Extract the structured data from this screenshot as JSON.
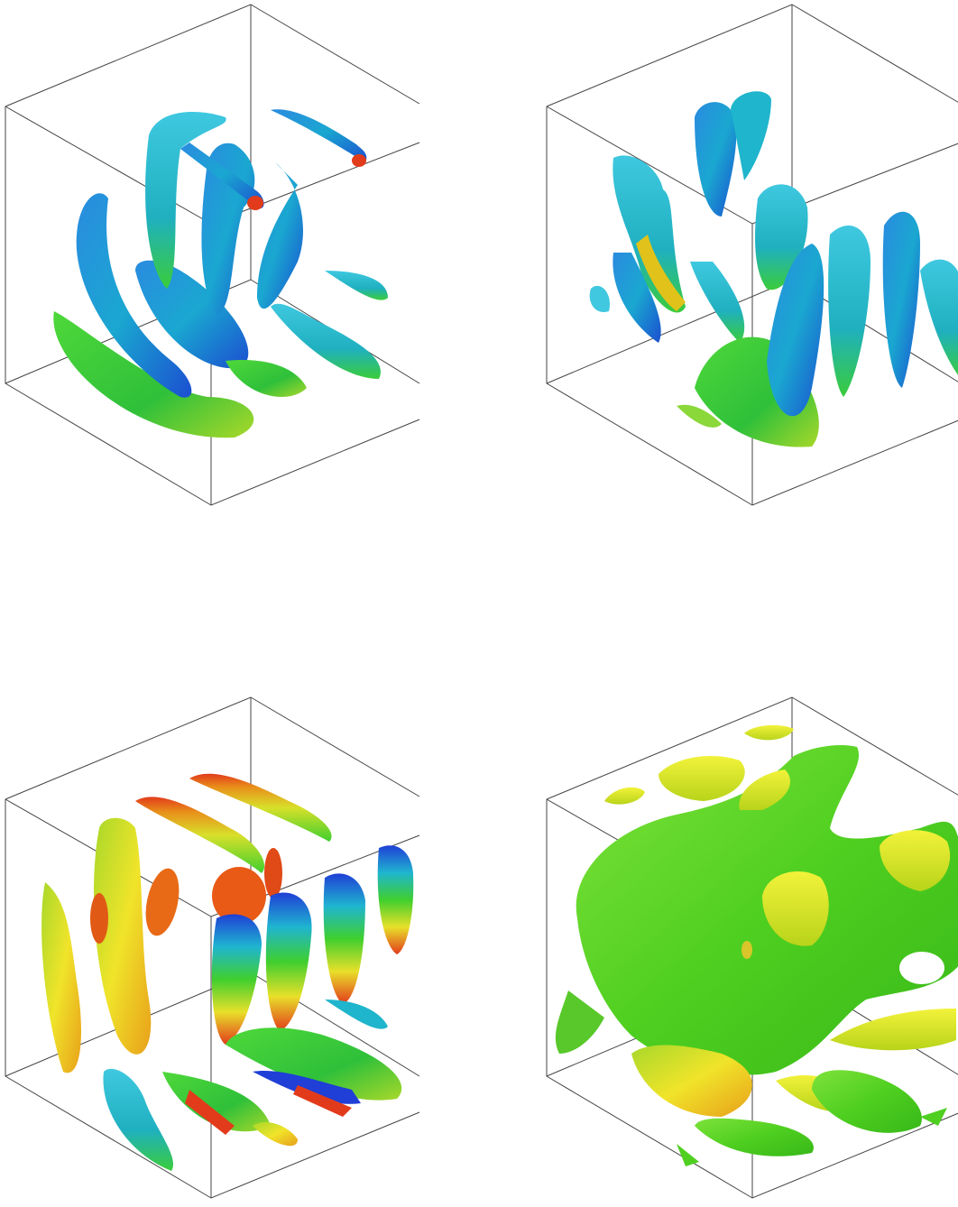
{
  "panels": [
    {
      "id": "p1",
      "colormap": "jet",
      "dominant_colors": [
        "#1f5fd6",
        "#19b5c9",
        "#3fcf2e",
        "#e23b1b"
      ]
    },
    {
      "id": "p2",
      "colormap": "jet",
      "dominant_colors": [
        "#1f5fd6",
        "#18b8cc",
        "#31cc35",
        "#e0c21a"
      ]
    },
    {
      "id": "p3",
      "colormap": "jet",
      "dominant_colors": [
        "#f2e42a",
        "#e85a16",
        "#35c935",
        "#1f3fd6"
      ]
    },
    {
      "id": "p4",
      "colormap": "green-yellow",
      "dominant_colors": [
        "#4fd12a",
        "#e6ee2a"
      ]
    }
  ]
}
